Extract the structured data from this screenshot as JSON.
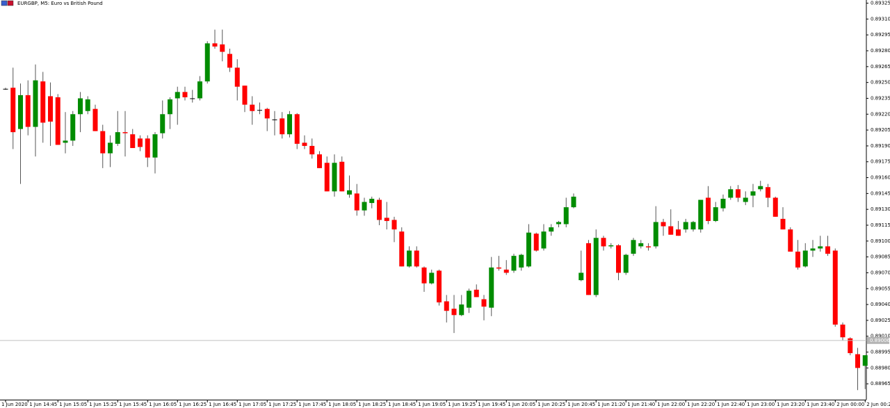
{
  "chart_data": {
    "type": "candlestick",
    "title": "EURGBP, M5:  Euro vs British Pound",
    "categories": [
      "1 Jun 2020",
      null,
      null,
      "1 Jun 14:45",
      null,
      null,
      null,
      "1 Jun 15:05",
      null,
      null,
      null,
      "1 Jun 15:25",
      null,
      null,
      null,
      "1 Jun 15:45",
      null,
      null,
      null,
      "1 Jun 16:05",
      null,
      null,
      null,
      "1 Jun 16:25",
      null,
      null,
      null,
      "1 Jun 16:45",
      null,
      null,
      null,
      "1 Jun 17:05",
      null,
      null,
      null,
      "1 Jun 17:25",
      null,
      null,
      null,
      "1 Jun 17:45",
      null,
      null,
      null,
      "1 Jun 18:05",
      null,
      null,
      null,
      "1 Jun 18:25",
      null,
      null,
      null,
      "1 Jun 18:45",
      null,
      null,
      null,
      "1 Jun 19:05",
      null,
      null,
      null,
      "1 Jun 19:25",
      null,
      null,
      null,
      "1 Jun 19:45",
      null,
      null,
      null,
      "1 Jun 20:05",
      null,
      null,
      null,
      "1 Jun 20:25",
      null,
      null,
      null,
      "1 Jun 20:45",
      null,
      null,
      null,
      "1 Jun 21:20",
      null,
      null,
      null,
      "1 Jun 21:40",
      null,
      null,
      null,
      "1 Jun 22:00",
      null,
      null,
      null,
      "1 Jun 22:20",
      null,
      null,
      null,
      "1 Jun 22:40",
      null,
      null,
      null,
      "1 Jun 23:00",
      null,
      null,
      null,
      "1 Jun 23:20",
      null,
      null,
      null,
      "1 Jun 23:40",
      null,
      null,
      null,
      "2 Jun 00:00",
      null,
      null,
      null,
      "2 Jun 00:20"
    ],
    "open": [
      0.89244,
      0.89245,
      0.89206,
      0.89238,
      0.89208,
      0.89251,
      0.89237,
      0.89236,
      0.89193,
      0.89195,
      0.8922,
      0.89223,
      0.89225,
      0.89204,
      0.89183,
      0.89192,
      0.89203,
      0.89201,
      0.89197,
      0.89197,
      0.89179,
      0.89202,
      0.8922,
      0.89235,
      0.89241,
      0.89235,
      0.89235,
      0.89251,
      0.89287,
      0.89286,
      0.89277,
      0.89264,
      0.89247,
      0.89229,
      0.89224,
      0.89225,
      0.89215,
      0.89216,
      0.89201,
      0.8922,
      0.89193,
      0.8919,
      0.89182,
      0.89174,
      0.89147,
      0.89175,
      0.89144,
      0.89145,
      0.89129,
      0.89136,
      0.89139,
      0.89122,
      0.8912,
      0.89109,
      0.89076,
      0.89091,
      0.89075,
      0.8906,
      0.89072,
      0.89043,
      0.89036,
      0.8903,
      0.89037,
      0.89054,
      0.89045,
      0.89037,
      0.89075,
      0.89073,
      0.89072,
      0.89075,
      0.89076,
      0.89107,
      0.89093,
      0.89109,
      0.89116,
      0.89116,
      0.89132,
      0.89063,
      0.89098,
      0.89049,
      0.89103,
      0.89095,
      0.89096,
      0.8907,
      0.89088,
      0.89095,
      0.89095,
      0.89095,
      0.89118,
      0.89114,
      0.89111,
      0.89111,
      0.89111,
      0.89111,
      0.89141,
      0.89119,
      0.89131,
      0.89141,
      0.89149,
      0.89137,
      0.89143,
      0.89149,
      0.89151,
      0.89141,
      0.89121,
      0.89111,
      0.8909,
      0.89076,
      0.89091,
      0.89093,
      0.89095,
      0.89091,
      0.89021,
      0.89008,
      0.88993,
      0.88982
    ],
    "high": [
      0.89245,
      0.89264,
      0.89249,
      0.89252,
      0.89267,
      0.8926,
      0.8925,
      0.89239,
      0.89222,
      0.89223,
      0.89241,
      0.89237,
      0.89229,
      0.8921,
      0.892,
      0.89223,
      0.89223,
      0.89206,
      0.892,
      0.892,
      0.89203,
      0.89233,
      0.89236,
      0.89246,
      0.89246,
      0.89243,
      0.89256,
      0.89289,
      0.893,
      0.893,
      0.89282,
      0.89272,
      0.89247,
      0.89237,
      0.89231,
      0.89226,
      0.89223,
      0.89222,
      0.89223,
      0.89221,
      0.892,
      0.89197,
      0.89185,
      0.8918,
      0.89182,
      0.8918,
      0.89162,
      0.89154,
      0.89141,
      0.89142,
      0.89141,
      0.89137,
      0.89123,
      0.89113,
      0.89095,
      0.89095,
      0.89076,
      0.89073,
      0.89073,
      0.89049,
      0.89049,
      0.89049,
      0.89055,
      0.89059,
      0.89049,
      0.89085,
      0.89086,
      0.89082,
      0.89088,
      0.89088,
      0.89116,
      0.89108,
      0.89116,
      0.89116,
      0.89119,
      0.89141,
      0.89145,
      0.89091,
      0.89101,
      0.89111,
      0.89105,
      0.89098,
      0.89097,
      0.89088,
      0.89103,
      0.89101,
      0.89098,
      0.89133,
      0.89121,
      0.8913,
      0.89119,
      0.89121,
      0.89119,
      0.89139,
      0.89152,
      0.89137,
      0.89144,
      0.89152,
      0.89153,
      0.89147,
      0.89154,
      0.89157,
      0.89154,
      0.89142,
      0.89132,
      0.89113,
      0.89101,
      0.89098,
      0.89101,
      0.89105,
      0.89105,
      0.89093,
      0.89023,
      0.89009,
      0.88999,
      0.88992
    ],
    "low": [
      0.89243,
      0.89187,
      0.89154,
      0.892,
      0.8918,
      0.89193,
      0.8919,
      0.89191,
      0.89183,
      0.8919,
      0.89203,
      0.8922,
      0.89204,
      0.89169,
      0.8917,
      0.8919,
      0.8918,
      0.89188,
      0.89185,
      0.8917,
      0.89164,
      0.89197,
      0.89206,
      0.8921,
      0.89233,
      0.89231,
      0.89233,
      0.89249,
      0.89282,
      0.8927,
      0.8926,
      0.89233,
      0.89222,
      0.8921,
      0.8922,
      0.89204,
      0.892,
      0.89197,
      0.89198,
      0.89187,
      0.89187,
      0.89178,
      0.89169,
      0.89147,
      0.89142,
      0.89147,
      0.89141,
      0.89124,
      0.89124,
      0.89131,
      0.89115,
      0.89111,
      0.89099,
      0.89076,
      0.89075,
      0.89075,
      0.89052,
      0.89059,
      0.89039,
      0.89023,
      0.89013,
      0.89029,
      0.89032,
      0.89047,
      0.89025,
      0.89029,
      0.89072,
      0.89068,
      0.8907,
      0.89072,
      0.89075,
      0.8909,
      0.89091,
      0.89105,
      0.89113,
      0.89113,
      0.89131,
      0.89062,
      0.89049,
      0.89047,
      0.89091,
      0.89093,
      0.89063,
      0.89068,
      0.89086,
      0.89093,
      0.89091,
      0.89093,
      0.89105,
      0.89106,
      0.89105,
      0.89108,
      0.89109,
      0.89108,
      0.89116,
      0.89118,
      0.89128,
      0.89139,
      0.89137,
      0.89134,
      0.89132,
      0.89147,
      0.89132,
      0.89123,
      0.89111,
      0.8909,
      0.89073,
      0.89075,
      0.89085,
      0.8909,
      0.89086,
      0.89019,
      0.89006,
      0.88992,
      0.88959,
      0.8896
    ],
    "close": [
      0.89244,
      0.89203,
      0.89238,
      0.89208,
      0.89252,
      0.89212,
      0.89213,
      0.89191,
      0.89195,
      0.8922,
      0.89235,
      0.89234,
      0.89204,
      0.89183,
      0.89193,
      0.89203,
      0.89202,
      0.89188,
      0.89189,
      0.89179,
      0.89201,
      0.8922,
      0.89234,
      0.89241,
      0.89236,
      0.89235,
      0.89251,
      0.89287,
      0.89284,
      0.89279,
      0.89264,
      0.89246,
      0.89229,
      0.89223,
      0.89224,
      0.89216,
      0.89215,
      0.89201,
      0.8922,
      0.89192,
      0.8919,
      0.89182,
      0.89169,
      0.89147,
      0.89174,
      0.89147,
      0.89148,
      0.89129,
      0.89137,
      0.8914,
      0.8912,
      0.89119,
      0.89111,
      0.89076,
      0.89091,
      0.89076,
      0.8906,
      0.8907,
      0.89042,
      0.89034,
      0.8903,
      0.8904,
      0.89053,
      0.89047,
      0.89038,
      0.89075,
      0.89074,
      0.8907,
      0.89086,
      0.89087,
      0.89108,
      0.89091,
      0.89109,
      0.89113,
      0.89118,
      0.89132,
      0.89142,
      0.8907,
      0.89049,
      0.89103,
      0.89095,
      0.89096,
      0.8907,
      0.89087,
      0.89101,
      0.89098,
      0.89094,
      0.89118,
      0.89114,
      0.89106,
      0.89105,
      0.89118,
      0.89118,
      0.89139,
      0.89119,
      0.89132,
      0.8914,
      0.89149,
      0.89141,
      0.89141,
      0.89147,
      0.89152,
      0.89141,
      0.89123,
      0.89111,
      0.8909,
      0.89075,
      0.89091,
      0.89093,
      0.89095,
      0.89088,
      0.89021,
      0.89009,
      0.88994,
      0.8898,
      0.88992
    ],
    "up_color": "#008c00",
    "down_color": "#ff0000",
    "wick_color": "#555555",
    "current_price": 0.89006,
    "ylim": [
      0.8895,
      0.89328
    ],
    "yticks": [
      0.89325,
      {
        "value": 0.8931,
        "label": "0.89310"
      },
      0.89295,
      {
        "value": 0.8928,
        "label": "0.89280"
      },
      0.89265,
      {
        "value": 0.8925,
        "label": "0.89250"
      },
      0.89235,
      {
        "value": 0.8922,
        "label": "0.89220"
      },
      0.89205,
      {
        "value": 0.8919,
        "label": "0.89190"
      },
      0.89175,
      {
        "value": 0.8916,
        "label": "0.89160"
      },
      0.89145,
      {
        "value": 0.8913,
        "label": "0.89130"
      },
      0.89115,
      {
        "value": 0.891,
        "label": "0.89100"
      },
      0.89085,
      {
        "value": 0.8907,
        "label": "0.89070"
      },
      0.89055,
      {
        "value": 0.8904,
        "label": "0.89040"
      },
      0.89025,
      {
        "value": 0.8901,
        "label": "0.89010"
      },
      0.88995,
      {
        "value": 0.8898,
        "label": "0.88980"
      },
      0.88965
    ]
  }
}
